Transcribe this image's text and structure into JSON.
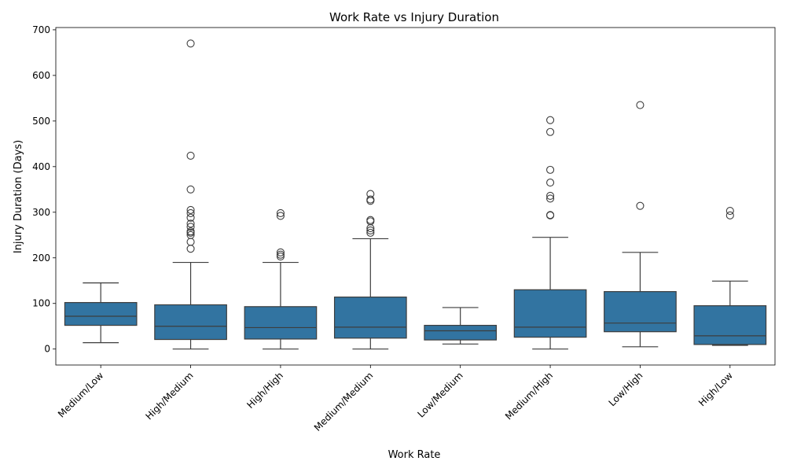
{
  "chart_data": {
    "type": "box",
    "title": "Work Rate vs Injury Duration",
    "xlabel": "Work Rate",
    "ylabel": "Injury Duration (Days)",
    "ylim": [
      -35,
      705
    ],
    "yticks": [
      0,
      100,
      200,
      300,
      400,
      500,
      600,
      700
    ],
    "box_color": "#3274a1",
    "line_color": "#3d3d3d",
    "categories": [
      "Medium/Low",
      "High/Medium",
      "High/High",
      "Medium/Medium",
      "Low/Medium",
      "Medium/High",
      "Low/High",
      "High/Low"
    ],
    "boxes": [
      {
        "category": "Medium/Low",
        "whisker_low": 14,
        "q1": 52,
        "median": 72,
        "q3": 102,
        "whisker_high": 145,
        "outliers": []
      },
      {
        "category": "High/Medium",
        "whisker_low": 0,
        "q1": 21,
        "median": 50,
        "q3": 97,
        "whisker_high": 190,
        "outliers": [
          670,
          424,
          350,
          305,
          298,
          288,
          275,
          268,
          258,
          255,
          250,
          235,
          220
        ]
      },
      {
        "category": "High/High",
        "whisker_low": 0,
        "q1": 22,
        "median": 47,
        "q3": 93,
        "whisker_high": 190,
        "outliers": [
          298,
          292,
          212,
          207,
          203
        ]
      },
      {
        "category": "Medium/Medium",
        "whisker_low": 0,
        "q1": 24,
        "median": 48,
        "q3": 114,
        "whisker_high": 242,
        "outliers": [
          340,
          328,
          325,
          283,
          280,
          265,
          260,
          255
        ]
      },
      {
        "category": "Low/Medium",
        "whisker_low": 11,
        "q1": 20,
        "median": 40,
        "q3": 52,
        "whisker_high": 91,
        "outliers": []
      },
      {
        "category": "Medium/High",
        "whisker_low": 0,
        "q1": 26,
        "median": 48,
        "q3": 130,
        "whisker_high": 245,
        "outliers": [
          502,
          476,
          393,
          365,
          336,
          330,
          294,
          293
        ]
      },
      {
        "category": "Low/High",
        "whisker_low": 5,
        "q1": 38,
        "median": 57,
        "q3": 126,
        "whisker_high": 212,
        "outliers": [
          535,
          314
        ]
      },
      {
        "category": "High/Low",
        "whisker_low": 8,
        "q1": 10,
        "median": 29,
        "q3": 95,
        "whisker_high": 149,
        "outliers": [
          303,
          293
        ]
      }
    ]
  }
}
